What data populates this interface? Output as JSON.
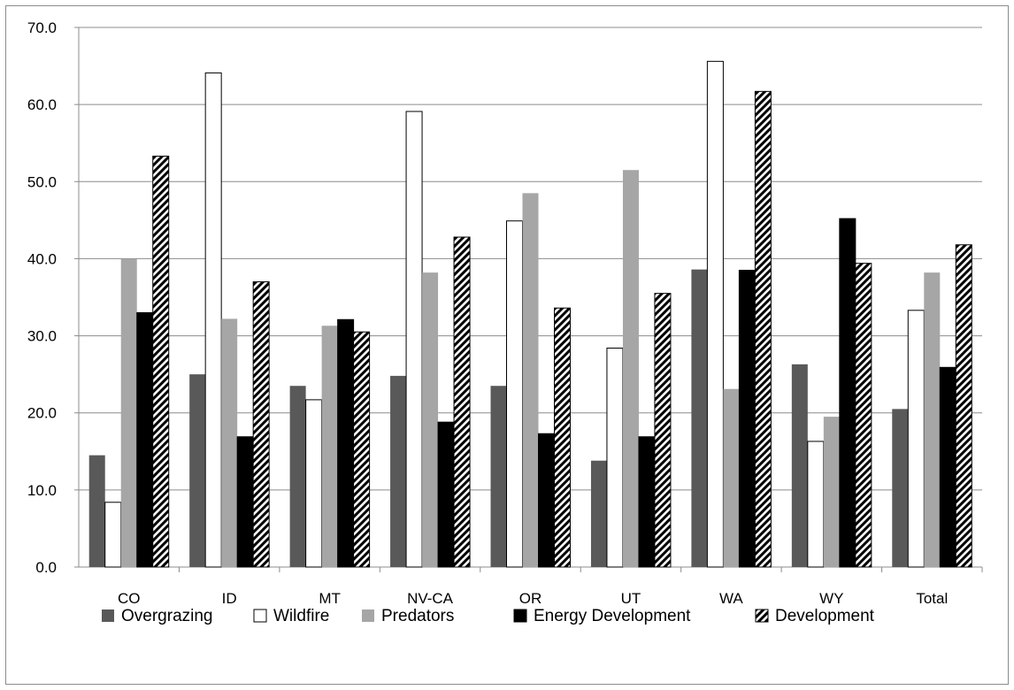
{
  "chart_data": {
    "type": "bar",
    "title": "",
    "xlabel": "",
    "ylabel": "",
    "ylim": [
      0,
      70
    ],
    "ytick_step": 10,
    "ytick_labels": [
      "0.0",
      "10.0",
      "20.0",
      "30.0",
      "40.0",
      "50.0",
      "60.0",
      "70.0"
    ],
    "grid": true,
    "legend_position": "bottom",
    "categories": [
      "CO",
      "ID",
      "MT",
      "NV-CA",
      "OR",
      "UT",
      "WA",
      "WY",
      "Total"
    ],
    "series": [
      {
        "name": "Overgrazing",
        "style": "solid",
        "color": "#595959",
        "values": [
          14.5,
          25.0,
          23.5,
          24.8,
          23.5,
          13.8,
          38.6,
          26.3,
          20.5
        ]
      },
      {
        "name": "Wildfire",
        "style": "outline",
        "color": "#ffffff",
        "values": [
          8.4,
          64.1,
          21.7,
          59.1,
          44.9,
          28.4,
          65.6,
          16.3,
          33.3
        ]
      },
      {
        "name": "Predators",
        "style": "solid",
        "color": "#a6a6a6",
        "values": [
          40.0,
          32.2,
          31.3,
          38.2,
          48.5,
          51.5,
          23.1,
          19.5,
          38.2
        ]
      },
      {
        "name": "Energy Development",
        "style": "solid",
        "color": "#000000",
        "values": [
          33.0,
          16.9,
          32.1,
          18.8,
          17.3,
          16.9,
          38.5,
          45.2,
          25.9
        ]
      },
      {
        "name": "Development",
        "style": "hatched",
        "color": "#000000",
        "values": [
          53.3,
          37.0,
          30.5,
          42.8,
          33.6,
          35.5,
          61.7,
          39.4,
          41.8
        ]
      }
    ]
  }
}
